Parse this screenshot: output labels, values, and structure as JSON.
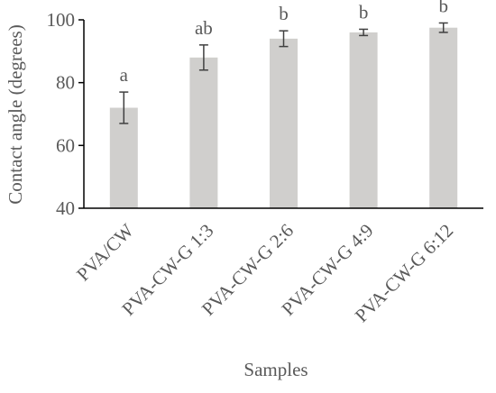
{
  "chart_data": {
    "type": "bar",
    "categories": [
      "PVA/CW",
      "PVA-CW-G 1:3",
      "PVA-CW-G 2:6",
      "PVA-CW-G 4:9",
      "PVA-CW-G 6:12"
    ],
    "values": [
      72,
      88,
      94,
      96,
      97.5
    ],
    "error": [
      5,
      4,
      2.5,
      1,
      1.5
    ],
    "significance": [
      "a",
      "ab",
      "b",
      "b",
      "b"
    ],
    "xlabel": "Samples",
    "ylabel": "Contact angle (degrees)",
    "ylim": [
      40,
      100
    ],
    "yticks": [
      "40",
      "60",
      "80",
      "100"
    ],
    "bar_color": "#d0cfcd",
    "grid": false
  }
}
